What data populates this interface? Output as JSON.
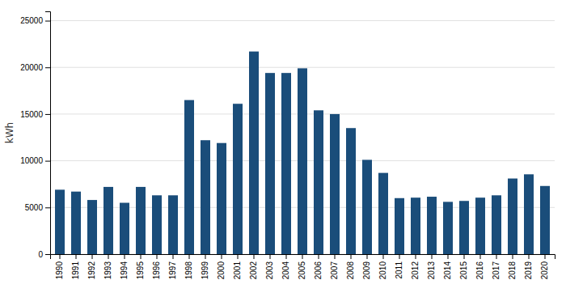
{
  "chart_data": {
    "type": "bar",
    "categories": [
      "1990",
      "1991",
      "1992",
      "1993",
      "1994",
      "1995",
      "1996",
      "1997",
      "1998",
      "1999",
      "2000",
      "2001",
      "2002",
      "2003",
      "2004",
      "2005",
      "2006",
      "2007",
      "2008",
      "2009",
      "2010",
      "2011",
      "2012",
      "2013",
      "2014",
      "2015",
      "2016",
      "2017",
      "2018",
      "2019",
      "2020"
    ],
    "values": [
      6900,
      6700,
      5800,
      7200,
      5500,
      7200,
      6300,
      6300,
      16500,
      12200,
      11900,
      16100,
      21700,
      19400,
      19400,
      19900,
      15400,
      15000,
      13500,
      10100,
      8700,
      6000,
      6050,
      6150,
      5600,
      5700,
      6050,
      6300,
      8100,
      8550,
      7300
    ],
    "color": "#1a4d7a",
    "ylabel": "kWh",
    "ylim": [
      0,
      26000
    ],
    "yticks": [
      0,
      5000,
      10000,
      15000,
      20000,
      25000
    ],
    "grid": true
  }
}
